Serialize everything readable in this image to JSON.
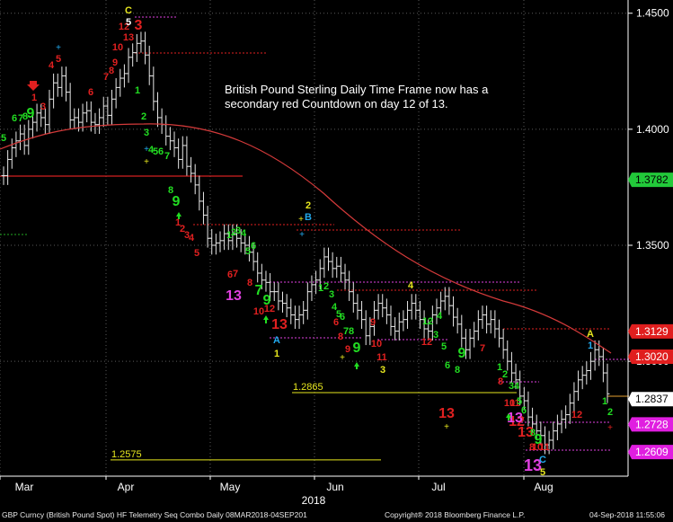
{
  "chart_data": {
    "type": "candlestick",
    "title": "",
    "annotation": [
      "British Pound Sterling Daily Time Frame now has a",
      "secondary red Countdown on day 12 of 13."
    ],
    "xlabel": "2018",
    "ylabel": "",
    "x_ticks": [
      "Mar",
      "Apr",
      "May",
      "Jun",
      "Jul",
      "Aug"
    ],
    "y_ticks": [
      {
        "label": "1.4500",
        "value": 1.45
      },
      {
        "label": "1.4000",
        "value": 1.4
      },
      {
        "label": "1.3500",
        "value": 1.35
      },
      {
        "label": "1.3000",
        "value": 1.3
      }
    ],
    "ylim": [
      1.2505,
      1.4557
    ],
    "moving_average_color": "#d43a3a",
    "price_series": [
      1.38,
      1.387,
      1.392,
      1.395,
      1.398,
      1.393,
      1.4,
      1.403,
      1.407,
      1.405,
      1.402,
      1.413,
      1.42,
      1.418,
      1.423,
      1.416,
      1.404,
      1.405,
      1.403,
      1.407,
      1.408,
      1.403,
      1.402,
      1.405,
      1.41,
      1.406,
      1.413,
      1.418,
      1.422,
      1.424,
      1.431,
      1.433,
      1.437,
      1.438,
      1.432,
      1.423,
      1.412,
      1.405,
      1.402,
      1.397,
      1.395,
      1.392,
      1.387,
      1.393,
      1.384,
      1.381,
      1.376,
      1.369,
      1.363,
      1.353,
      1.35,
      1.351,
      1.352,
      1.355,
      1.352,
      1.355,
      1.353,
      1.351,
      1.35,
      1.347,
      1.343,
      1.338,
      1.335,
      1.334,
      1.33,
      1.33,
      1.326,
      1.325,
      1.323,
      1.32,
      1.318,
      1.32,
      1.322,
      1.33,
      1.333,
      1.335,
      1.34,
      1.345,
      1.343,
      1.34,
      1.341,
      1.338,
      1.335,
      1.33,
      1.325,
      1.322,
      1.318,
      1.311,
      1.315,
      1.322,
      1.325,
      1.323,
      1.32,
      1.315,
      1.313,
      1.317,
      1.318,
      1.322,
      1.325,
      1.322,
      1.318,
      1.314,
      1.313,
      1.32,
      1.323,
      1.326,
      1.328,
      1.324,
      1.319,
      1.316,
      1.31,
      1.305,
      1.31,
      1.313,
      1.318,
      1.32,
      1.316,
      1.318,
      1.314,
      1.31,
      1.305,
      1.3,
      1.295,
      1.292,
      1.285,
      1.283,
      1.276,
      1.273,
      1.27,
      1.268,
      1.264,
      1.266,
      1.27,
      1.273,
      1.275,
      1.277,
      1.282,
      1.287,
      1.292,
      1.294,
      1.296,
      1.3,
      1.305,
      1.302,
      1.295,
      1.286
    ],
    "levels": [
      {
        "label": "1.2865",
        "value": 1.2865,
        "color": "#e6e61e"
      },
      {
        "label": "1.2575",
        "value": 1.2575,
        "color": "#e6e61e"
      }
    ],
    "price_tags": [
      {
        "label": "1.3782",
        "value": 1.3782,
        "bg": "#22c93a",
        "fg": "#000000"
      },
      {
        "label": "1.3129",
        "value": 1.3129,
        "bg": "#e01e1e",
        "fg": "#ffffff"
      },
      {
        "label": "1.3020",
        "value": 1.302,
        "bg": "#e01e1e",
        "fg": "#ffffff"
      },
      {
        "label": "1.2837",
        "value": 1.2837,
        "bg": "#ffffff",
        "fg": "#000000"
      },
      {
        "label": "1.2728",
        "value": 1.2728,
        "bg": "#e01ee0",
        "fg": "#ffffff"
      },
      {
        "label": "1.2609",
        "value": 1.2609,
        "bg": "#e01ee0",
        "fg": "#ffffff"
      }
    ],
    "sequential_markers": [
      {
        "t": "5",
        "x": 4,
        "y": 157,
        "c": "#22dd22",
        "s": 11
      },
      {
        "t": "6",
        "x": 16,
        "y": 135,
        "c": "#22dd22",
        "s": 11
      },
      {
        "t": "7",
        "x": 23,
        "y": 135,
        "c": "#22dd22",
        "s": 11
      },
      {
        "t": "8",
        "x": 28,
        "y": 133,
        "c": "#22dd22",
        "s": 11
      },
      {
        "t": "9",
        "x": 34,
        "y": 131,
        "c": "#22dd22",
        "s": 16
      },
      {
        "t": "1",
        "x": 38,
        "y": 112,
        "c": "#e02020",
        "s": 11
      },
      {
        "t": "3",
        "x": 48,
        "y": 122,
        "c": "#e02020",
        "s": 11
      },
      {
        "t": "4",
        "x": 57,
        "y": 76,
        "c": "#e02020",
        "s": 11
      },
      {
        "t": "5",
        "x": 65,
        "y": 69,
        "c": "#e02020",
        "s": 11
      },
      {
        "t": "6",
        "x": 101,
        "y": 106,
        "c": "#e02020",
        "s": 11
      },
      {
        "t": "7",
        "x": 118,
        "y": 89,
        "c": "#e02020",
        "s": 11
      },
      {
        "t": "8",
        "x": 124,
        "y": 82,
        "c": "#e02020",
        "s": 11
      },
      {
        "t": "9",
        "x": 128,
        "y": 73,
        "c": "#e02020",
        "s": 11
      },
      {
        "t": "10",
        "x": 131,
        "y": 56,
        "c": "#e02020",
        "s": 11
      },
      {
        "t": "12",
        "x": 138,
        "y": 33,
        "c": "#e02020",
        "s": 11
      },
      {
        "t": "13",
        "x": 143,
        "y": 45,
        "c": "#e02020",
        "s": 11
      },
      {
        "t": "3",
        "x": 154,
        "y": 33,
        "c": "#e02020",
        "s": 16
      },
      {
        "t": "C",
        "x": 143,
        "y": 15,
        "c": "#e6e61e",
        "s": 11
      },
      {
        "t": "5",
        "x": 143,
        "y": 28,
        "c": "#ffffff",
        "s": 11
      },
      {
        "t": "1",
        "x": 153,
        "y": 104,
        "c": "#22dd22",
        "s": 11
      },
      {
        "t": "2",
        "x": 160,
        "y": 133,
        "c": "#22dd22",
        "s": 11
      },
      {
        "t": "3",
        "x": 163,
        "y": 151,
        "c": "#22dd22",
        "s": 11
      },
      {
        "t": "4",
        "x": 168,
        "y": 170,
        "c": "#22dd22",
        "s": 11
      },
      {
        "t": "5",
        "x": 173,
        "y": 172,
        "c": "#22dd22",
        "s": 11
      },
      {
        "t": "6",
        "x": 179,
        "y": 172,
        "c": "#22dd22",
        "s": 11
      },
      {
        "t": "7",
        "x": 186,
        "y": 177,
        "c": "#22dd22",
        "s": 11
      },
      {
        "t": "8",
        "x": 190,
        "y": 215,
        "c": "#22dd22",
        "s": 11
      },
      {
        "t": "9",
        "x": 196,
        "y": 229,
        "c": "#22dd22",
        "s": 16
      },
      {
        "t": "1",
        "x": 198,
        "y": 251,
        "c": "#e02020",
        "s": 11
      },
      {
        "t": "2",
        "x": 203,
        "y": 258,
        "c": "#e02020",
        "s": 11
      },
      {
        "t": "3",
        "x": 208,
        "y": 265,
        "c": "#e02020",
        "s": 11
      },
      {
        "t": "4",
        "x": 213,
        "y": 268,
        "c": "#e02020",
        "s": 11
      },
      {
        "t": "5",
        "x": 219,
        "y": 285,
        "c": "#e02020",
        "s": 11
      },
      {
        "t": "1",
        "x": 255,
        "y": 265,
        "c": "#22dd22",
        "s": 11
      },
      {
        "t": "2",
        "x": 260,
        "y": 262,
        "c": "#22dd22",
        "s": 11
      },
      {
        "t": "3",
        "x": 265,
        "y": 260,
        "c": "#22dd22",
        "s": 11
      },
      {
        "t": "4",
        "x": 271,
        "y": 263,
        "c": "#22dd22",
        "s": 11
      },
      {
        "t": "5",
        "x": 276,
        "y": 283,
        "c": "#22dd22",
        "s": 11
      },
      {
        "t": "6",
        "x": 282,
        "y": 277,
        "c": "#22dd22",
        "s": 11
      },
      {
        "t": "7",
        "x": 288,
        "y": 328,
        "c": "#22dd22",
        "s": 16
      },
      {
        "t": "9",
        "x": 297,
        "y": 339,
        "c": "#22dd22",
        "s": 16
      },
      {
        "t": "6",
        "x": 256,
        "y": 309,
        "c": "#e02020",
        "s": 11
      },
      {
        "t": "7",
        "x": 262,
        "y": 308,
        "c": "#e02020",
        "s": 11
      },
      {
        "t": "8",
        "x": 278,
        "y": 318,
        "c": "#e02020",
        "s": 11
      },
      {
        "t": "10",
        "x": 288,
        "y": 350,
        "c": "#e02020",
        "s": 11
      },
      {
        "t": "12",
        "x": 300,
        "y": 347,
        "c": "#e02020",
        "s": 11
      },
      {
        "t": "13",
        "x": 311,
        "y": 366,
        "c": "#e02020",
        "s": 16
      },
      {
        "t": "13",
        "x": 260,
        "y": 334,
        "c": "#e040e0",
        "s": 16
      },
      {
        "t": "A",
        "x": 308,
        "y": 382,
        "c": "#22aaee",
        "s": 11
      },
      {
        "t": "1",
        "x": 308,
        "y": 397,
        "c": "#e6e61e",
        "s": 11
      },
      {
        "t": "2",
        "x": 343,
        "y": 232,
        "c": "#e6e61e",
        "s": 11
      },
      {
        "t": "B",
        "x": 343,
        "y": 245,
        "c": "#22aaee",
        "s": 11
      },
      {
        "t": "1",
        "x": 357,
        "y": 324,
        "c": "#22dd22",
        "s": 11
      },
      {
        "t": "2",
        "x": 363,
        "y": 322,
        "c": "#22dd22",
        "s": 11
      },
      {
        "t": "3",
        "x": 369,
        "y": 331,
        "c": "#22dd22",
        "s": 11
      },
      {
        "t": "4",
        "x": 372,
        "y": 345,
        "c": "#22dd22",
        "s": 11
      },
      {
        "t": "5",
        "x": 377,
        "y": 353,
        "c": "#22dd22",
        "s": 11
      },
      {
        "t": "6",
        "x": 381,
        "y": 356,
        "c": "#22dd22",
        "s": 11
      },
      {
        "t": "7",
        "x": 385,
        "y": 372,
        "c": "#22dd22",
        "s": 11
      },
      {
        "t": "8",
        "x": 391,
        "y": 372,
        "c": "#22dd22",
        "s": 11
      },
      {
        "t": "9",
        "x": 397,
        "y": 392,
        "c": "#22dd22",
        "s": 16
      },
      {
        "t": "6",
        "x": 374,
        "y": 362,
        "c": "#e02020",
        "s": 11
      },
      {
        "t": "8",
        "x": 379,
        "y": 378,
        "c": "#e02020",
        "s": 11
      },
      {
        "t": "9",
        "x": 387,
        "y": 392,
        "c": "#e02020",
        "s": 11
      },
      {
        "t": "9",
        "x": 415,
        "y": 362,
        "c": "#e02020",
        "s": 11
      },
      {
        "t": "10",
        "x": 419,
        "y": 386,
        "c": "#e02020",
        "s": 11
      },
      {
        "t": "11",
        "x": 425,
        "y": 401,
        "c": "#e02020",
        "s": 11
      },
      {
        "t": "3",
        "x": 426,
        "y": 415,
        "c": "#e6e61e",
        "s": 11
      },
      {
        "t": "4",
        "x": 457,
        "y": 321,
        "c": "#e6e61e",
        "s": 11
      },
      {
        "t": "1",
        "x": 473,
        "y": 361,
        "c": "#22dd22",
        "s": 11
      },
      {
        "t": "2",
        "x": 479,
        "y": 361,
        "c": "#22dd22",
        "s": 11
      },
      {
        "t": "4",
        "x": 489,
        "y": 355,
        "c": "#22dd22",
        "s": 11
      },
      {
        "t": "3",
        "x": 485,
        "y": 376,
        "c": "#22dd22",
        "s": 11
      },
      {
        "t": "5",
        "x": 494,
        "y": 389,
        "c": "#22dd22",
        "s": 11
      },
      {
        "t": "6",
        "x": 498,
        "y": 410,
        "c": "#22dd22",
        "s": 11
      },
      {
        "t": "8",
        "x": 509,
        "y": 415,
        "c": "#22dd22",
        "s": 11
      },
      {
        "t": "9",
        "x": 514,
        "y": 398,
        "c": "#22dd22",
        "s": 16
      },
      {
        "t": "12",
        "x": 475,
        "y": 384,
        "c": "#e02020",
        "s": 11
      },
      {
        "t": "13",
        "x": 497,
        "y": 465,
        "c": "#e02020",
        "s": 16
      },
      {
        "t": "7",
        "x": 537,
        "y": 391,
        "c": "#e02020",
        "s": 11
      },
      {
        "t": "8",
        "x": 557,
        "y": 428,
        "c": "#e02020",
        "s": 11
      },
      {
        "t": "10",
        "x": 567,
        "y": 452,
        "c": "#e02020",
        "s": 11
      },
      {
        "t": "11",
        "x": 573,
        "y": 452,
        "c": "#e02020",
        "s": 11
      },
      {
        "t": "12",
        "x": 575,
        "y": 474,
        "c": "#e02020",
        "s": 16
      },
      {
        "t": "13",
        "x": 585,
        "y": 486,
        "c": "#e02020",
        "s": 16
      },
      {
        "t": "1",
        "x": 556,
        "y": 412,
        "c": "#22dd22",
        "s": 11
      },
      {
        "t": "2",
        "x": 562,
        "y": 420,
        "c": "#22dd22",
        "s": 11
      },
      {
        "t": "3",
        "x": 569,
        "y": 433,
        "c": "#22dd22",
        "s": 11
      },
      {
        "t": "4",
        "x": 575,
        "y": 433,
        "c": "#22dd22",
        "s": 11
      },
      {
        "t": "5",
        "x": 578,
        "y": 450,
        "c": "#22dd22",
        "s": 11
      },
      {
        "t": "6",
        "x": 583,
        "y": 460,
        "c": "#22dd22",
        "s": 11
      },
      {
        "t": "8",
        "x": 593,
        "y": 485,
        "c": "#22dd22",
        "s": 11
      },
      {
        "t": "9",
        "x": 599,
        "y": 494,
        "c": "#22dd22",
        "s": 16
      },
      {
        "t": "8",
        "x": 592,
        "y": 501,
        "c": "#e02020",
        "s": 11
      },
      {
        "t": "10",
        "x": 598,
        "y": 501,
        "c": "#e02020",
        "s": 11
      },
      {
        "t": "11",
        "x": 606,
        "y": 501,
        "c": "#e02020",
        "s": 11
      },
      {
        "t": "13",
        "x": 573,
        "y": 470,
        "c": "#e040e0",
        "s": 16
      },
      {
        "t": "13",
        "x": 593,
        "y": 524,
        "c": "#e040e0",
        "s": 18
      },
      {
        "t": "C",
        "x": 604,
        "y": 515,
        "c": "#22aaee",
        "s": 11
      },
      {
        "t": "5",
        "x": 604,
        "y": 529,
        "c": "#e6e61e",
        "s": 11
      },
      {
        "t": "12",
        "x": 642,
        "y": 465,
        "c": "#e02020",
        "s": 11
      },
      {
        "t": "A",
        "x": 657,
        "y": 375,
        "c": "#e6e61e",
        "s": 11
      },
      {
        "t": "1",
        "x": 657,
        "y": 388,
        "c": "#22aaee",
        "s": 11
      },
      {
        "t": "1",
        "x": 673,
        "y": 450,
        "c": "#22dd22",
        "s": 11
      },
      {
        "t": "2",
        "x": 679,
        "y": 462,
        "c": "#22dd22",
        "s": 11
      }
    ]
  },
  "footer": {
    "security": "GBP Curncy (British Pound Spot) HF Telemetry Seq Combo  Daily 08MAR2018-04SEP201",
    "copyright": "Copyright® 2018 Bloomberg Finance L.P.",
    "timestamp": "04-Sep-2018 11:55:06"
  }
}
